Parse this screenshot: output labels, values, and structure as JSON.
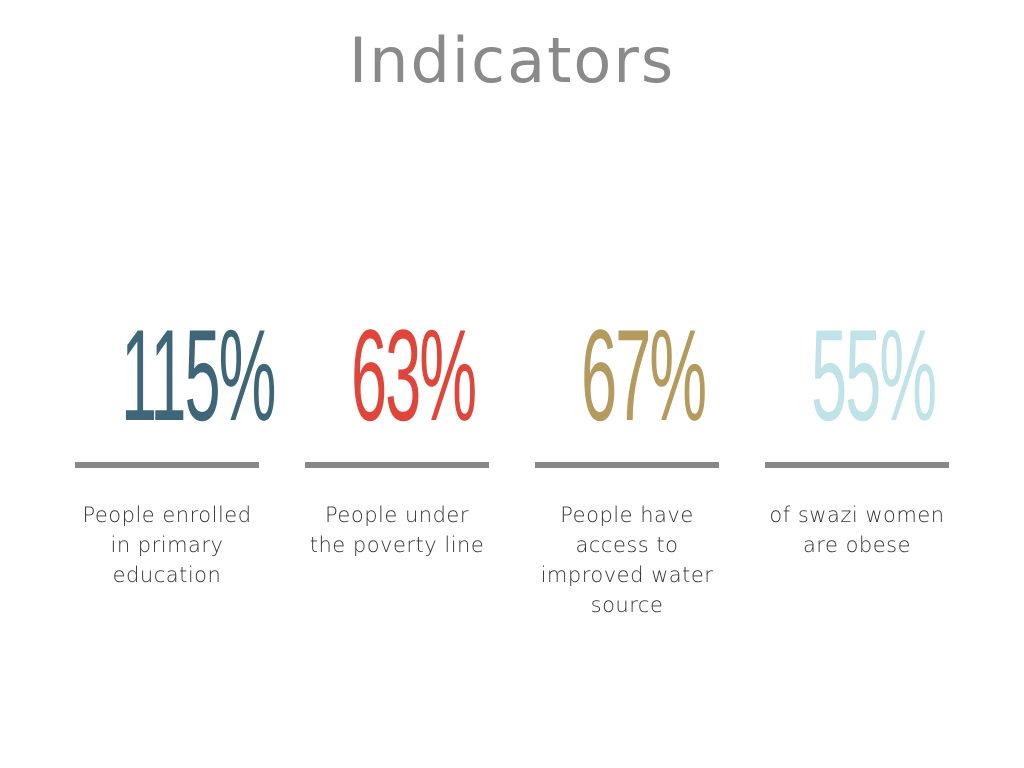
{
  "slide": {
    "title": "Indicators"
  },
  "indicators": [
    {
      "value": "115%",
      "label": "People enrolled in primary education",
      "color": "#3e6678"
    },
    {
      "value": "63%",
      "label": "People under the poverty line",
      "color": "#e0453a"
    },
    {
      "value": "67%",
      "label": "People have access to improved water source",
      "color": "#b59a5e"
    },
    {
      "value": "55%",
      "label": "of swazi women are obese",
      "color": "#bfe3e6"
    }
  ]
}
